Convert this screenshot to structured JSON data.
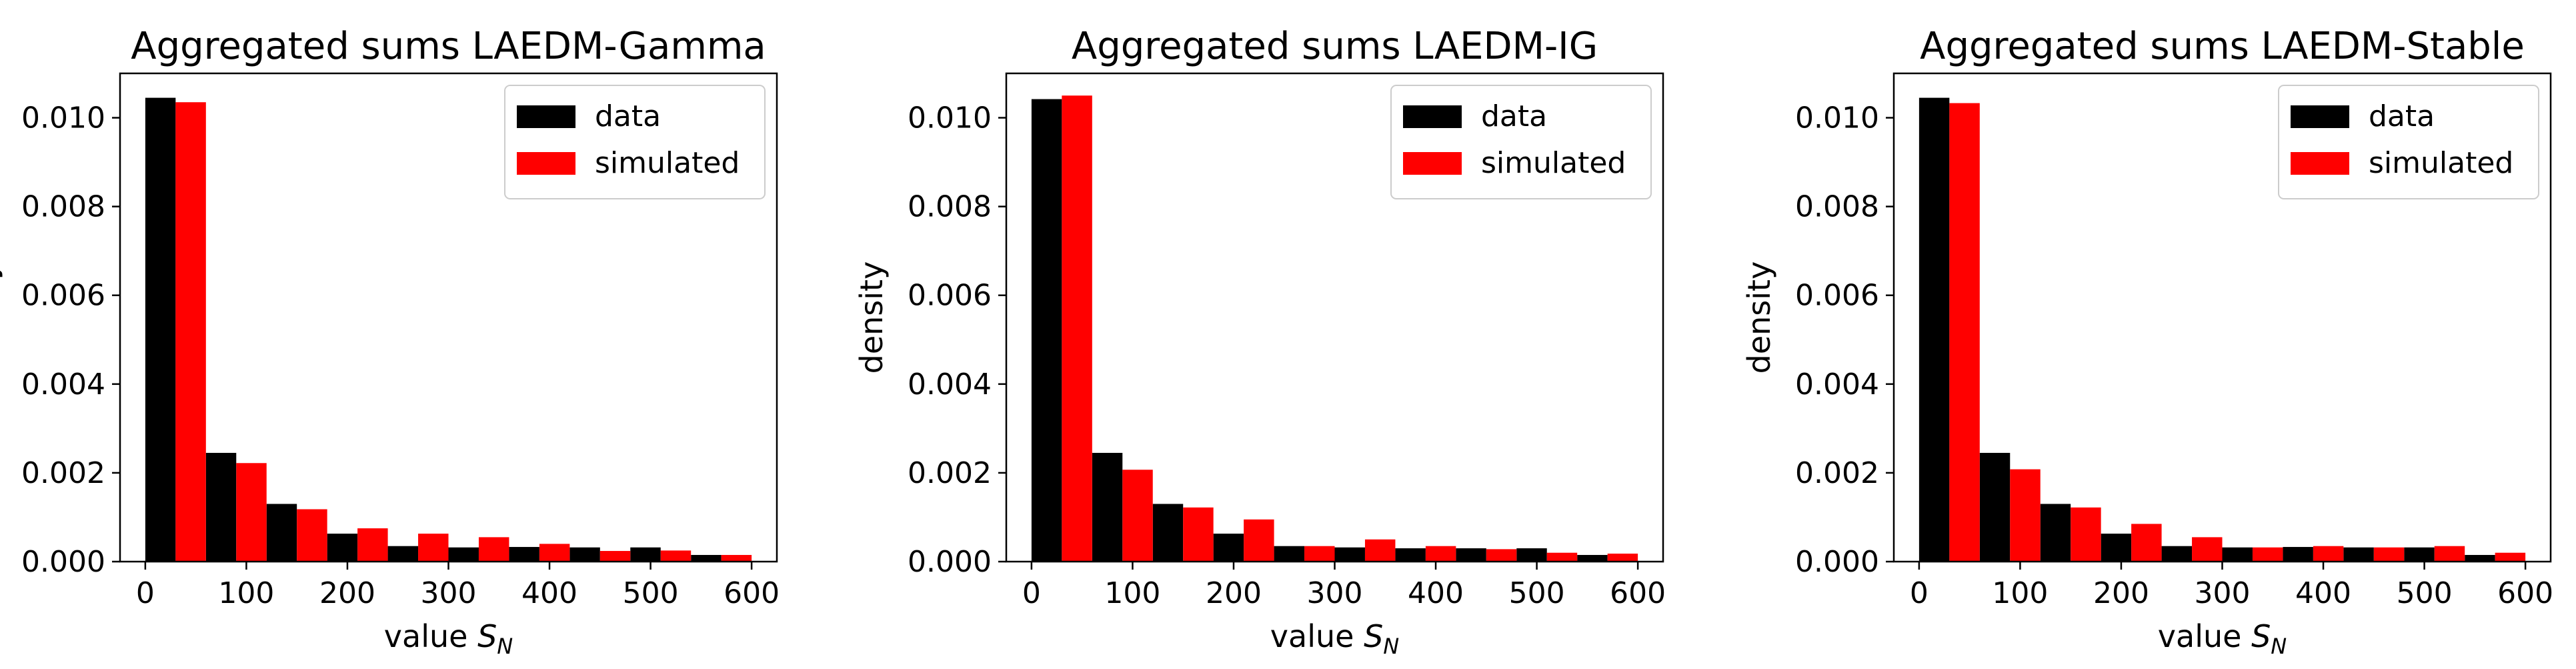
{
  "chart_data": [
    {
      "type": "bar",
      "title": "Aggregated sums LAEDM-Gamma",
      "xlabel": "value",
      "xlabel_symbol": "S",
      "xlabel_subscript": "N",
      "ylabel": "density",
      "xlim": [
        -25,
        625
      ],
      "ylim": [
        0,
        0.011
      ],
      "xticks": [
        "0",
        "100",
        "200",
        "300",
        "400",
        "500",
        "600"
      ],
      "yticks": [
        "0.000",
        "0.002",
        "0.004",
        "0.006",
        "0.008",
        "0.010"
      ],
      "bin_centers": [
        30,
        90,
        150,
        210,
        270,
        330,
        390,
        450,
        510,
        570
      ],
      "bin_width": 60,
      "legend_position": "upper right",
      "series": [
        {
          "name": "data",
          "color": "#000000",
          "values": [
            0.01045,
            0.00245,
            0.0013,
            0.00063,
            0.00035,
            0.00032,
            0.00033,
            0.00032,
            0.00032,
            0.00015
          ]
        },
        {
          "name": "simulated",
          "color": "#ff0000",
          "values": [
            0.01035,
            0.00222,
            0.00118,
            0.00075,
            0.00063,
            0.00055,
            0.0004,
            0.00024,
            0.00025,
            0.00015
          ]
        }
      ]
    },
    {
      "type": "bar",
      "title": "Aggregated sums LAEDM-IG",
      "xlabel": "value",
      "xlabel_symbol": "S",
      "xlabel_subscript": "N",
      "ylabel": "density",
      "xlim": [
        -25,
        625
      ],
      "ylim": [
        0,
        0.011
      ],
      "xticks": [
        "0",
        "100",
        "200",
        "300",
        "400",
        "500",
        "600"
      ],
      "yticks": [
        "0.000",
        "0.002",
        "0.004",
        "0.006",
        "0.008",
        "0.010"
      ],
      "bin_centers": [
        30,
        90,
        150,
        210,
        270,
        330,
        390,
        450,
        510,
        570
      ],
      "bin_width": 60,
      "legend_position": "upper right",
      "series": [
        {
          "name": "data",
          "color": "#000000",
          "values": [
            0.01042,
            0.00245,
            0.0013,
            0.00063,
            0.00035,
            0.00032,
            0.0003,
            0.0003,
            0.0003,
            0.00015
          ]
        },
        {
          "name": "simulated",
          "color": "#ff0000",
          "values": [
            0.0105,
            0.00207,
            0.00122,
            0.00095,
            0.00035,
            0.0005,
            0.00035,
            0.00028,
            0.0002,
            0.00018
          ]
        }
      ]
    },
    {
      "type": "bar",
      "title": "Aggregated sums LAEDM-Stable",
      "xlabel": "value",
      "xlabel_symbol": "S",
      "xlabel_subscript": "N",
      "ylabel": "density",
      "xlim": [
        -25,
        625
      ],
      "ylim": [
        0,
        0.011
      ],
      "xticks": [
        "0",
        "100",
        "200",
        "300",
        "400",
        "500",
        "600"
      ],
      "yticks": [
        "0.000",
        "0.002",
        "0.004",
        "0.006",
        "0.008",
        "0.010"
      ],
      "bin_centers": [
        30,
        90,
        150,
        210,
        270,
        330,
        390,
        450,
        510,
        570
      ],
      "bin_width": 60,
      "legend_position": "upper right",
      "series": [
        {
          "name": "data",
          "color": "#000000",
          "values": [
            0.01045,
            0.00245,
            0.0013,
            0.00063,
            0.00035,
            0.00032,
            0.00033,
            0.00032,
            0.00032,
            0.00015
          ]
        },
        {
          "name": "simulated",
          "color": "#ff0000",
          "values": [
            0.01033,
            0.00208,
            0.00122,
            0.00085,
            0.00055,
            0.00032,
            0.00035,
            0.00032,
            0.00035,
            0.0002
          ]
        }
      ]
    }
  ]
}
